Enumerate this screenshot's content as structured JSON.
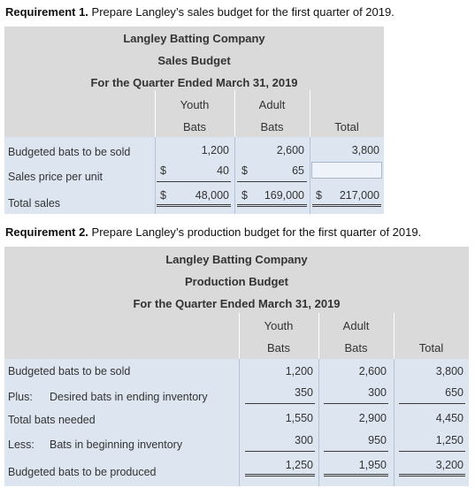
{
  "req1": {
    "bold": "Requirement 1.",
    "text": " Prepare Langley’s sales budget for the first quarter of 2019."
  },
  "sales": {
    "company": "Langley Batting Company",
    "title": "Sales Budget",
    "period": "For the Quarter Ended March 31, 2019",
    "col_youth_1": "Youth",
    "col_youth_2": "Bats",
    "col_adult_1": "Adult",
    "col_adult_2": "Bats",
    "col_total": "Total",
    "rows": [
      {
        "label": "Budgeted bats to be sold",
        "youth": "1,200",
        "adult": "2,600",
        "total": "3,800"
      },
      {
        "label": "Sales price per unit",
        "youth_sym": "$",
        "youth": "40",
        "adult_sym": "$",
        "adult": "65",
        "total": ""
      },
      {
        "label": "Total sales",
        "youth_sym": "$",
        "youth": "48,000",
        "adult_sym": "$",
        "adult": "169,000",
        "total_sym": "$",
        "total": "217,000"
      }
    ]
  },
  "req2": {
    "bold": "Requirement 2.",
    "text": " Prepare Langley’s production budget for the first quarter of 2019."
  },
  "production": {
    "company": "Langley Batting Company",
    "title": "Production Budget",
    "period": "For the Quarter Ended March 31, 2019",
    "col_youth_1": "Youth",
    "col_youth_2": "Bats",
    "col_adult_1": "Adult",
    "col_adult_2": "Bats",
    "col_total": "Total",
    "rows": [
      {
        "prefix": "",
        "label": "Budgeted bats to be sold",
        "youth": "1,200",
        "adult": "2,600",
        "total": "3,800"
      },
      {
        "prefix": "Plus:",
        "label": "Desired bats in ending inventory",
        "youth": "350",
        "adult": "300",
        "total": "650"
      },
      {
        "prefix": "",
        "label": "Total bats needed",
        "youth": "1,550",
        "adult": "2,900",
        "total": "4,450"
      },
      {
        "prefix": "Less:",
        "label": "Bats in beginning inventory",
        "youth": "300",
        "adult": "950",
        "total": "1,250"
      },
      {
        "prefix": "",
        "label": "Budgeted bats to be produced",
        "youth": "1,250",
        "adult": "1,950",
        "total": "3,200"
      }
    ]
  }
}
